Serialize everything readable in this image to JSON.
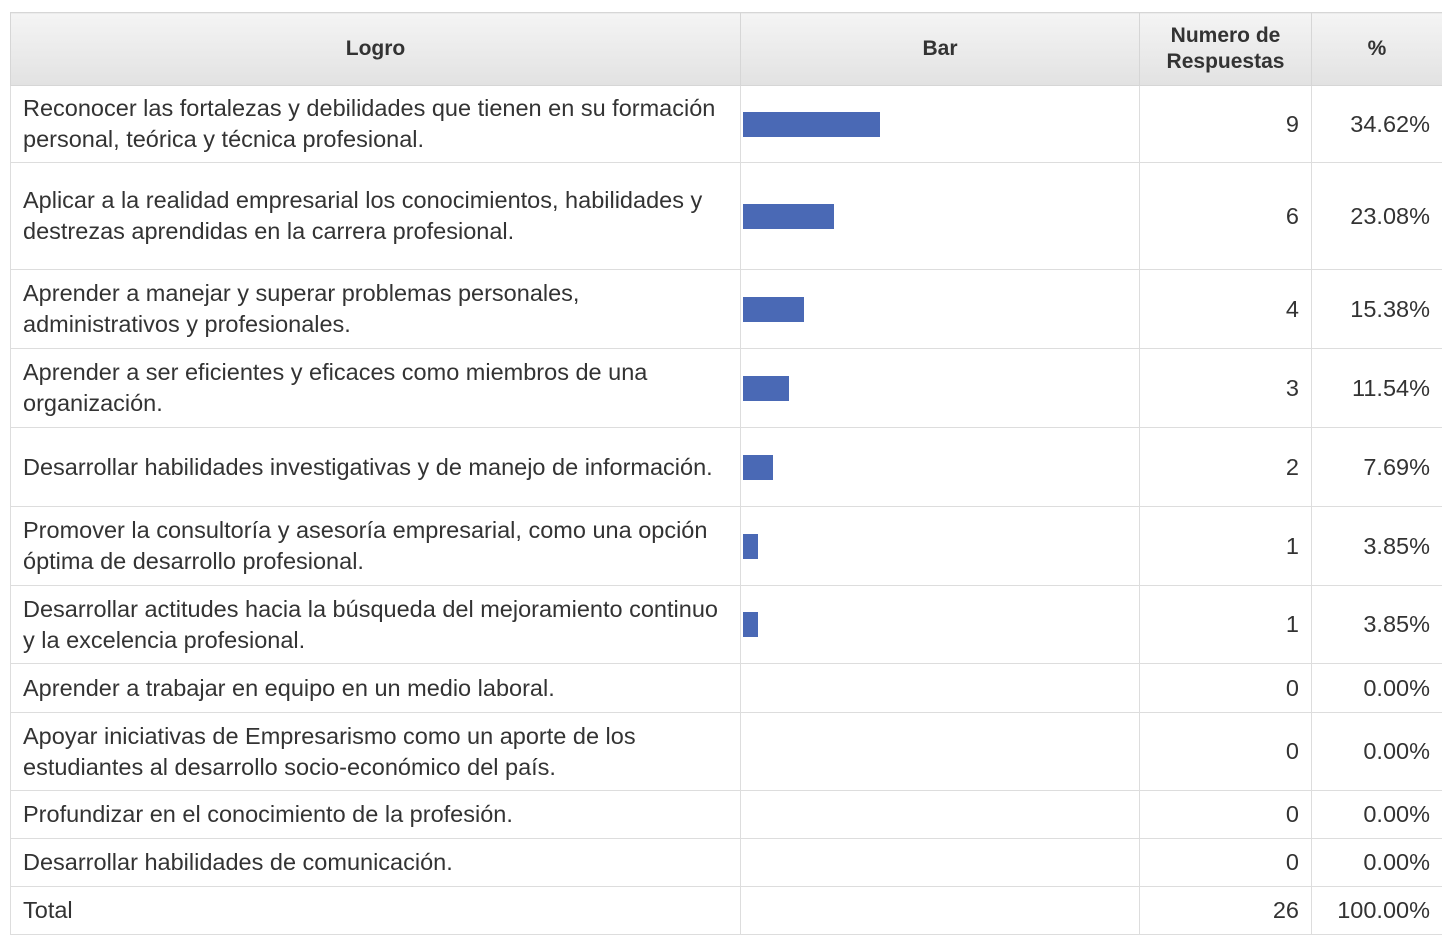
{
  "table": {
    "headers": [
      "Logro",
      "Bar",
      "Numero de Respuestas",
      "%"
    ],
    "rows": [
      {
        "label": "Reconocer las fortalezas y debilidades que tienen en su formación personal, teórica y técnica profesional.",
        "count": 9,
        "percent": "34.62%"
      },
      {
        "label": "Aplicar a la realidad empresarial los conocimientos, habilidades y destrezas aprendidas en la carrera profesional.",
        "count": 6,
        "percent": "23.08%"
      },
      {
        "label": "Aprender a manejar y superar problemas personales, administrativos y profesionales.",
        "count": 4,
        "percent": "15.38%"
      },
      {
        "label": "Aprender a ser eficientes y eficaces como miembros de una organización.",
        "count": 3,
        "percent": "11.54%"
      },
      {
        "label": "Desarrollar habilidades investigativas y de manejo de información.",
        "count": 2,
        "percent": "7.69%"
      },
      {
        "label": "Promover la consultoría y asesoría empresarial, como una opción óptima de desarrollo profesional.",
        "count": 1,
        "percent": "3.85%"
      },
      {
        "label": "Desarrollar actitudes hacia la búsqueda del mejoramiento continuo y la excelencia profesional.",
        "count": 1,
        "percent": "3.85%"
      },
      {
        "label": "Aprender a trabajar en equipo en un medio laboral.",
        "count": 0,
        "percent": "0.00%"
      },
      {
        "label": "Apoyar iniciativas de Empresarismo como un aporte de los estudiantes al desarrollo socio-económico del país.",
        "count": 0,
        "percent": "0.00%"
      },
      {
        "label": "Profundizar en el conocimiento de la profesión.",
        "count": 0,
        "percent": "0.00%"
      },
      {
        "label": "Desarrollar habilidades de comunicación.",
        "count": 0,
        "percent": "0.00%"
      }
    ],
    "total": {
      "label": "Total",
      "count": 26,
      "percent": "100.00%"
    }
  }
}
